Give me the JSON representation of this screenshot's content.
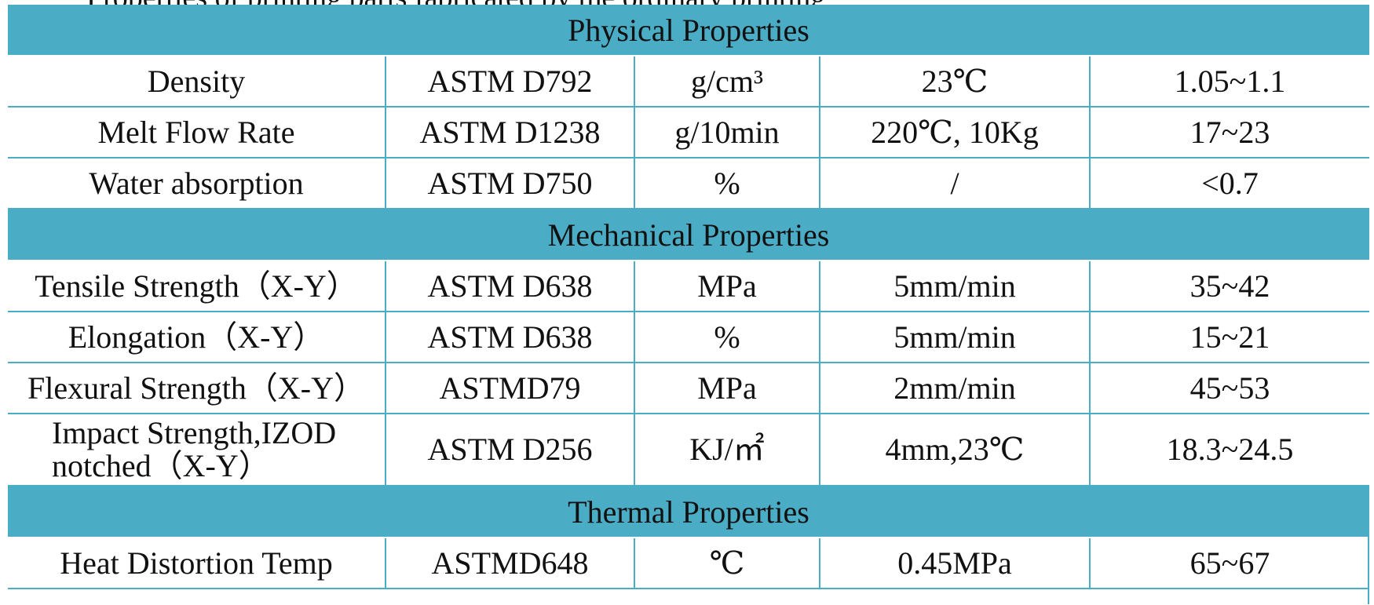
{
  "top_text": "Properties of printing parts fabricated by the ordinary printing",
  "sections": [
    {
      "title": "Physical Properties",
      "rows": [
        {
          "property": "Density",
          "standard": "ASTM D792",
          "unit": "g/cm³",
          "condition": "23℃",
          "value": "1.05~1.1"
        },
        {
          "property": "Melt Flow Rate",
          "standard": "ASTM D1238",
          "unit": "g/10min",
          "condition": "220℃, 10Kg",
          "value": "17~23"
        },
        {
          "property": "Water absorption",
          "standard": "ASTM D750",
          "unit": "%",
          "condition": "/",
          "value": "<0.7"
        }
      ]
    },
    {
      "title": "Mechanical Properties",
      "rows": [
        {
          "property": "Tensile Strength（X-Y）",
          "standard": "ASTM D638",
          "unit": "MPa",
          "condition": "5mm/min",
          "value": "35~42"
        },
        {
          "property": "Elongation（X-Y）",
          "standard": "ASTM D638",
          "unit": "%",
          "condition": "5mm/min",
          "value": "15~21"
        },
        {
          "property": "Flexural Strength（X-Y）",
          "standard": "ASTMD79",
          "unit": "MPa",
          "condition": "2mm/min",
          "value": "45~53"
        },
        {
          "property": "Impact Strength,IZOD notched（X-Y）",
          "standard": "ASTM D256",
          "unit": "KJ/㎡",
          "condition": "4mm,23℃",
          "value": "18.3~24.5"
        }
      ]
    },
    {
      "title": "Thermal Properties",
      "rows": [
        {
          "property": "Heat Distortion Temp",
          "standard": "ASTMD648",
          "unit": "℃",
          "condition": "0.45MPa",
          "value": "65~67"
        }
      ]
    }
  ],
  "colors": {
    "band": "#4bacc6",
    "grid": "#4bacc6",
    "text": "#111111"
  }
}
